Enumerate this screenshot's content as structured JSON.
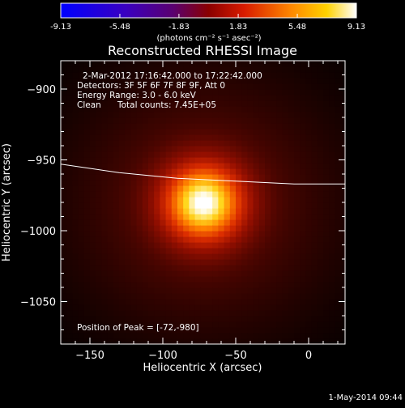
{
  "colorbar": {
    "ticks": [
      "-9.13",
      "-5.48",
      "-1.83",
      "1.83",
      "5.48",
      "9.13"
    ],
    "unit_label": "(photons cm⁻² s⁻¹ asec⁻²)"
  },
  "chart_data": {
    "type": "heatmap",
    "title": "Reconstructed RHESSI Image",
    "xlabel": "Heliocentric X (arcsec)",
    "ylabel": "Heliocentric Y (arcsec)",
    "xlim": [
      -170,
      25
    ],
    "ylim": [
      -1080,
      -880
    ],
    "x_ticks": [
      -150,
      -100,
      -50,
      0
    ],
    "y_ticks": [
      -900,
      -950,
      -1000,
      -1050
    ],
    "x_tick_labels": [
      "−150",
      "−100",
      "−50",
      "0"
    ],
    "y_tick_labels": [
      "−900",
      "−950",
      "−1000",
      "−1050"
    ],
    "color_range": [
      -9.13,
      9.13
    ],
    "peak": {
      "x": -72,
      "y": -980,
      "value": 9.13
    },
    "source_sigma_arcsec": 26,
    "limb_curve": [
      [
        -170,
        -953
      ],
      [
        -150,
        -956
      ],
      [
        -130,
        -959
      ],
      [
        -110,
        -961
      ],
      [
        -90,
        -963
      ],
      [
        -70,
        -964
      ],
      [
        -50,
        -965
      ],
      [
        -30,
        -966
      ],
      [
        -10,
        -967
      ],
      [
        10,
        -967
      ],
      [
        25,
        -967
      ]
    ],
    "annotations": {
      "time_range": "2-Mar-2012 17:16:42.000 to 17:22:42.000",
      "detectors": "Detectors: 3F 5F 6F 7F 8F 9F, Att 0",
      "energy_range": "Energy Range: 3.0 - 6.0 keV",
      "clean_label": "Clean",
      "total_counts": "Total counts: 7.45E+05",
      "peak_position": "Position of Peak = [-72,-980]"
    }
  },
  "footer": {
    "timestamp": "1-May-2014 09:44"
  }
}
